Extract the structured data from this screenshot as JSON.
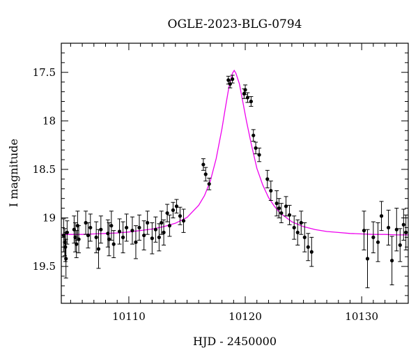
{
  "chart_data": {
    "type": "scatter",
    "title": "OGLE-2023-BLG-0794",
    "xlabel": "HJD - 2450000",
    "ylabel": "I magnitude",
    "xlim": [
      10104.2,
      10134.0
    ],
    "ylim": [
      19.88,
      17.2
    ],
    "y_inverted": true,
    "x_ticks": [
      10110,
      10120,
      10130
    ],
    "x_tick_labels": [
      "10110",
      "10120",
      "10130"
    ],
    "y_ticks": [
      17.5,
      18,
      18.5,
      19,
      19.5
    ],
    "y_tick_labels": [
      "17.5",
      "18",
      "18.5",
      "19",
      "19.5"
    ],
    "grid": false,
    "legend": "none",
    "colors": {
      "data": "#000000",
      "model": "#ee00ee"
    },
    "model": {
      "name": "",
      "baseline_mag": 19.175,
      "peak_mag": 17.48,
      "t0": 10119.05,
      "x": [
        10104.2,
        10105,
        10106,
        10107,
        10108,
        10109,
        10110,
        10111,
        10112,
        10113,
        10114,
        10115,
        10116,
        10116.5,
        10117,
        10117.5,
        10118,
        10118.3,
        10118.6,
        10118.9,
        10119.05,
        10119.2,
        10119.5,
        10119.8,
        10120.1,
        10120.5,
        10121,
        10121.5,
        10122,
        10122.5,
        10123,
        10124,
        10125,
        10126,
        10127,
        10128,
        10129,
        10130,
        10131,
        10132,
        10133,
        10134.0
      ],
      "y": [
        19.17,
        19.17,
        19.17,
        19.165,
        19.16,
        19.155,
        19.145,
        19.13,
        19.115,
        19.09,
        19.055,
        18.995,
        18.87,
        18.77,
        18.62,
        18.39,
        18.08,
        17.86,
        17.65,
        17.51,
        17.48,
        17.51,
        17.62,
        17.81,
        18.0,
        18.23,
        18.49,
        18.66,
        18.79,
        18.88,
        18.95,
        19.04,
        19.09,
        19.12,
        19.14,
        19.15,
        19.16,
        19.165,
        19.17,
        19.17,
        19.175,
        19.175
      ]
    },
    "series": [
      {
        "name": "",
        "x": [
          10104.4,
          10104.5,
          10104.55,
          10104.6,
          10104.7,
          10105.3,
          10105.4,
          10105.5,
          10105.6,
          10105.7,
          10106.3,
          10106.5,
          10106.7,
          10107.2,
          10107.4,
          10107.6,
          10108.2,
          10108.3,
          10108.5,
          10108.7,
          10109.2,
          10109.5,
          10109.8,
          10110.3,
          10110.6,
          10110.9,
          10111.3,
          10111.6,
          10112.0,
          10112.3,
          10112.6,
          10112.8,
          10113.0,
          10113.3,
          10113.5,
          10113.8,
          10114.1,
          10114.4,
          10114.7,
          10116.4,
          10116.6,
          10116.9,
          10118.55,
          10118.7,
          10118.9,
          10119.9,
          10120.0,
          10120.2,
          10120.5,
          10120.7,
          10120.9,
          10121.2,
          10121.9,
          10122.2,
          10122.7,
          10122.9,
          10123.1,
          10123.5,
          10123.8,
          10124.2,
          10124.5,
          10124.8,
          10125.1,
          10125.4,
          10125.7,
          10130.2,
          10130.5,
          10131.0,
          10131.4,
          10131.7,
          10132.3,
          10132.6,
          10133.0,
          10133.3,
          10133.6,
          10133.8
        ],
        "y": [
          19.18,
          19.25,
          19.3,
          19.42,
          19.15,
          19.12,
          19.2,
          19.27,
          19.08,
          19.22,
          19.05,
          19.18,
          19.1,
          19.2,
          19.32,
          19.12,
          19.16,
          19.22,
          19.08,
          19.27,
          19.14,
          19.2,
          19.1,
          19.13,
          19.25,
          19.1,
          19.18,
          19.05,
          19.21,
          19.12,
          19.2,
          19.05,
          19.15,
          18.95,
          19.08,
          18.92,
          18.88,
          18.98,
          19.03,
          18.45,
          18.55,
          18.65,
          17.58,
          17.62,
          17.57,
          17.72,
          17.68,
          17.76,
          17.8,
          18.15,
          18.28,
          18.35,
          18.6,
          18.72,
          18.85,
          18.9,
          18.95,
          18.88,
          18.97,
          19.1,
          19.15,
          19.05,
          19.2,
          19.3,
          19.35,
          19.13,
          19.42,
          19.2,
          19.25,
          18.98,
          19.1,
          19.44,
          19.12,
          19.28,
          19.07,
          19.15
        ],
        "err": [
          0.17,
          0.14,
          0.15,
          0.2,
          0.12,
          0.14,
          0.15,
          0.14,
          0.15,
          0.14,
          0.12,
          0.13,
          0.14,
          0.16,
          0.2,
          0.14,
          0.14,
          0.17,
          0.15,
          0.14,
          0.13,
          0.16,
          0.14,
          0.14,
          0.17,
          0.13,
          0.15,
          0.12,
          0.16,
          0.13,
          0.14,
          0.12,
          0.13,
          0.09,
          0.11,
          0.08,
          0.07,
          0.09,
          0.12,
          0.06,
          0.07,
          0.06,
          0.04,
          0.04,
          0.04,
          0.05,
          0.05,
          0.05,
          0.05,
          0.06,
          0.06,
          0.07,
          0.09,
          0.1,
          0.13,
          0.1,
          0.1,
          0.1,
          0.1,
          0.12,
          0.13,
          0.12,
          0.15,
          0.14,
          0.15,
          0.2,
          0.3,
          0.16,
          0.2,
          0.15,
          0.18,
          0.25,
          0.22,
          0.17,
          0.16,
          0.18
        ]
      }
    ]
  }
}
